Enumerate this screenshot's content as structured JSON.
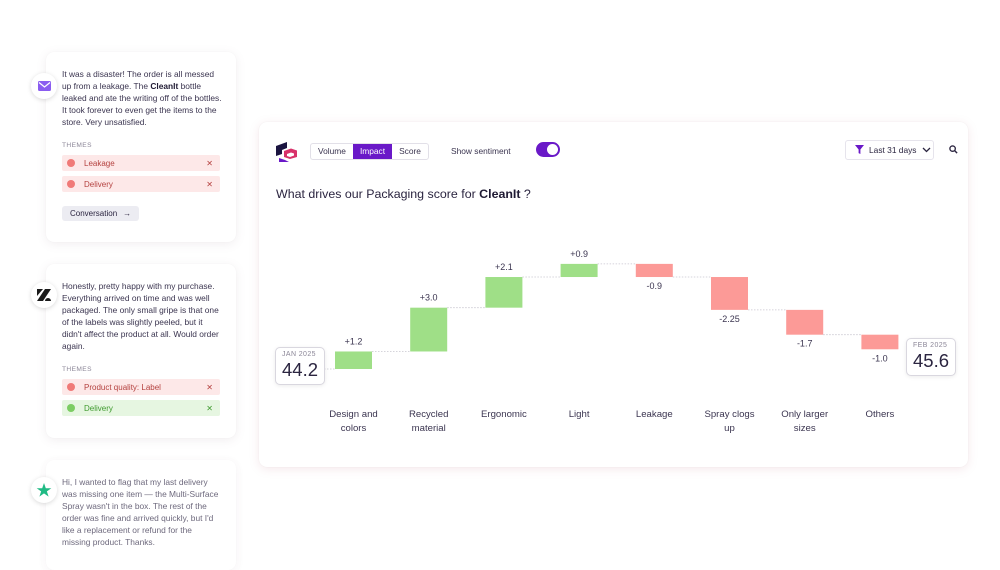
{
  "reviews": [
    {
      "source": "email",
      "text_parts": [
        {
          "t": "It was a disaster! The order is all messed up from a leakage. The ",
          "b": false
        },
        {
          "t": "CleanIt",
          "b": true
        },
        {
          "t": " bottle leaked and ate the writing off of the bottles. It took forever to even get the items to the store. Very unsatisfied.",
          "b": false
        }
      ],
      "themes_label": "THEMES",
      "themes": [
        {
          "label": "Leakage",
          "sentiment": "negative"
        },
        {
          "label": "Delivery",
          "sentiment": "negative"
        }
      ],
      "button": "Conversation"
    },
    {
      "source": "zendesk",
      "text_parts": [
        {
          "t": "Honestly, pretty happy with my purchase. Everything arrived on time and was well packaged. The only small gripe is that one of the labels was slightly peeled, but it didn't affect the product at all. Would order again.",
          "b": false
        }
      ],
      "themes_label": "THEMES",
      "themes": [
        {
          "label": "Product quality: Label",
          "sentiment": "negative"
        },
        {
          "label": "Delivery",
          "sentiment": "positive"
        }
      ]
    },
    {
      "source": "trustpilot",
      "text_parts": [
        {
          "t": "Hi, I wanted to flag that my last delivery was missing one item — the Multi-Surface Spray wasn't in the box. The rest of the order was fine and arrived quickly, but I'd like a replacement or refund for the missing product. Thanks.",
          "b": false
        }
      ]
    }
  ],
  "toolbar": {
    "tabs": [
      "Volume",
      "Impact",
      "Score"
    ],
    "active_tab": "Impact",
    "sentiment_label": "Show sentiment",
    "sentiment_on": true,
    "period": "Last 31 days"
  },
  "question": {
    "prefix": "What drives our Packaging score for ",
    "brand": "CleanIt",
    "suffix": " ?"
  },
  "colors": {
    "positive": "#9fdf87",
    "negative": "#fc9a97",
    "accent": "#6a19c8"
  },
  "chart_data": {
    "type": "waterfall",
    "start": {
      "label": "JAN 2025",
      "value": 44.2
    },
    "end": {
      "label": "FEB 2025",
      "value": 45.6
    },
    "categories": [
      "Design and colors",
      "Recycled material",
      "Ergonomic",
      "Light",
      "Leakage",
      "Spray clogs up",
      "Only larger sizes",
      "Others"
    ],
    "deltas": [
      1.2,
      3.0,
      2.1,
      0.9,
      -0.9,
      -2.25,
      -1.7,
      -1.0
    ],
    "delta_labels": [
      "+1.2",
      "+3.0",
      "+2.1",
      "+0.9",
      "-0.9",
      "-2.25",
      "-1.7",
      "-1.0"
    ]
  }
}
